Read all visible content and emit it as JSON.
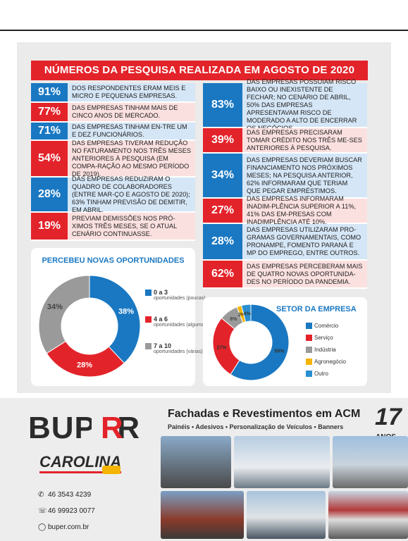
{
  "title": "NÚMEROS DA PESQUISA REALIZADA EM AGOSTO DE 2020",
  "left_rows": [
    {
      "pct": "91%",
      "text": "DOS RESPONDENTES ERAM MEIS E MICRO E PEQUENAS EMPRESAS."
    },
    {
      "pct": "77%",
      "text": "DAS EMPRESAS TINHAM MAIS DE CINCO ANOS DE MERCADO."
    },
    {
      "pct": "71%",
      "text": "DAS EMPRESAS TINHAM EN-TRE UM E DEZ FUNCIONÁRIOS."
    },
    {
      "pct": "54%",
      "text": "DAS EMPRESAS TIVERAM REDUÇÃO NO FATURAMENTO NOS TRÊS MESES ANTERIORES À PESQUISA (EM COMPA-RAÇÃO AO MESMO PERÍODO DE 2019)."
    },
    {
      "pct": "28%",
      "text": "DAS EMPRESAS REDUZIRAM O QUADRO DE COLABORADORES (ENTRE MAR-ÇO E AGOSTO DE 2020); 63% TINHAM PREVISÃO DE DEMITIR, EM ABRIL."
    },
    {
      "pct": "19%",
      "text": "PREVIAM DEMISSÕES NOS PRÓ-XIMOS TRÊS MESES, SE O ATUAL CENÁRIO CONTINUASSE."
    }
  ],
  "right_rows": [
    {
      "pct": "83%",
      "text": "DAS EMPRESAS POSSUIAM RISCO BAIXO OU INEXISTENTE DE FECHAR; NO CENÁRIO DE ABRIL, 50% DAS EMPRESAS APRESENTAVAM RISCO DE MODERADO A ALTO DE ENCERRAR OS NEGÓCIOS."
    },
    {
      "pct": "39%",
      "text": "DAS EMPRESAS PRECISARAM TOMAR CRÉDITO NOS TRÊS ME-SES ANTERIORES À PESQUISA."
    },
    {
      "pct": "34%",
      "text": "DAS EMPRESAS DEVERIAM BUSCAR FINANCIAMENTO NOS PRÓXIMOS MESES; NA PESQUISA ANTERIOR, 62% INFORMARAM QUE TERIAM QUE PEGAR EMPRÉSTIMOS."
    },
    {
      "pct": "27%",
      "text": "DAS EMPRESAS INFORMARAM INADIM-PLÊNCIA SUPERIOR A 11%, 41% DAS EM-PRESAS COM INADIMPLÊNCIA ATÉ 10%."
    },
    {
      "pct": "28%",
      "text": "DAS EMPRESAS UTILIZARAM PRO-GRAMAS GOVERNAMENTAIS, COMO PRONAMPE, FOMENTO PARANÁ E MP DO EMPREGO, ENTRE OUTROS."
    },
    {
      "pct": "62%",
      "text": "DAS EMPRESAS PERCEBERAM MAIS DE QUATRO NOVAS OPORTUNIDA-DES NO PERÍODO DA PANDEMIA."
    }
  ],
  "chart_data": [
    {
      "type": "pie",
      "title": "PERCEBEU NOVAS OPORTUNIDADES",
      "slices": [
        {
          "label": "0 a 3",
          "sublabel": "oportunidades (poucas)",
          "value": 38,
          "value_label": "38%",
          "color": "#1a78c2"
        },
        {
          "label": "4 a 6",
          "sublabel": "oportunidades (algumas)",
          "value": 28,
          "value_label": "28%",
          "color": "#e3232a"
        },
        {
          "label": "7 a 10",
          "sublabel": "oportunidades (várias)",
          "value": 34,
          "value_label": "34%",
          "color": "#9a9a9a"
        }
      ]
    },
    {
      "type": "pie",
      "title": "SETOR DA EMPRESA",
      "slices": [
        {
          "label": "Comércio",
          "value": 59,
          "value_label": "59%",
          "color": "#1a78c2"
        },
        {
          "label": "Serviço",
          "value": 27,
          "value_label": "27%",
          "color": "#e3232a"
        },
        {
          "label": "Indústria",
          "value": 8,
          "value_label": "8%",
          "color": "#9a9a9a"
        },
        {
          "label": "Agronegócio",
          "value": 2,
          "value_label": "2%",
          "color": "#f4b400"
        },
        {
          "label": "Outro",
          "value": 4,
          "value_label": "4%",
          "color": "#2a8fd0"
        }
      ]
    }
  ],
  "ad": {
    "brand": "BUPER",
    "brand2": "CAROLINA",
    "headline": "Fachadas e Revestimentos em ACM",
    "subline": "Painéis • Adesivos • Personalização de Veículos • Banners",
    "anniv_number": "17",
    "anniv_word": "ANOS",
    "phone1": "46 3543 4239",
    "phone2": "46 99923 0077",
    "site": "buper.com.br"
  }
}
